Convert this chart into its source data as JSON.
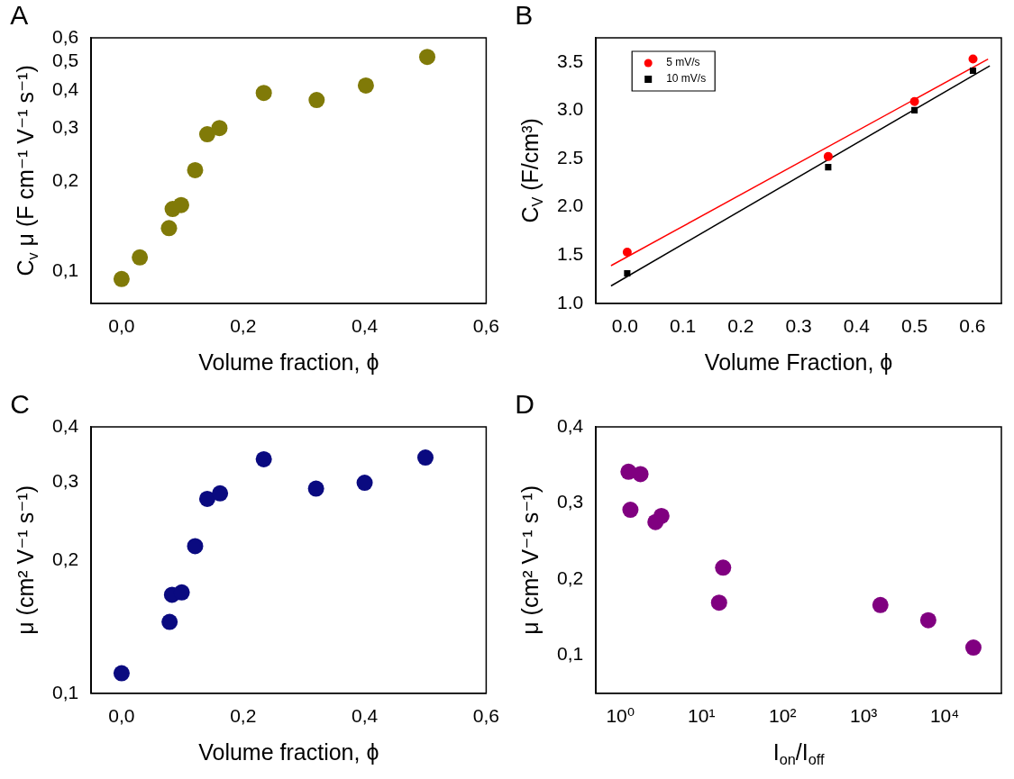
{
  "chart_data": [
    {
      "type": "scatter",
      "title": "A",
      "xlabel": "Volume fraction, ϕ",
      "ylabel": "C$_{v}$ μ (F cm⁻¹ V⁻¹ s⁻¹)",
      "log": "y",
      "grid": false,
      "marker": "circle",
      "legend": false,
      "xlim": [
        -0.05,
        0.6
      ],
      "xticks": [
        {
          "value": 0,
          "label": "0,0"
        },
        {
          "value": 0.2,
          "label": "0,2"
        },
        {
          "value": 0.4,
          "label": "0,4"
        },
        {
          "value": 0.6,
          "label": "0,6"
        }
      ],
      "ylim": [
        0.078,
        0.6
      ],
      "yticks": [
        {
          "value": 0.1,
          "label": "0,1"
        },
        {
          "value": 0.2,
          "label": "0,2"
        },
        {
          "value": 0.3,
          "label": "0,3"
        },
        {
          "value": 0.4,
          "label": "0,4"
        },
        {
          "value": 0.5,
          "label": "0,5"
        },
        {
          "value": 0.6,
          "label": "0,6"
        }
      ],
      "x": [
        0,
        0.03,
        0.078,
        0.084,
        0.098,
        0.121,
        0.141,
        0.161,
        0.234,
        0.321,
        0.402,
        0.503
      ],
      "series": [
        {
          "color": "#807a08",
          "values": [
            0.094,
            0.111,
            0.139,
            0.161,
            0.166,
            0.217,
            0.286,
            0.3,
            0.393,
            0.372,
            0.416,
            0.518
          ]
        }
      ]
    },
    {
      "type": "scatter",
      "title": "B",
      "xlabel": "Volume Fraction, ϕ",
      "ylabel": "C$_{V}$ (F/cm³)",
      "grid": false,
      "legend": "top left",
      "xlim": [
        -0.05,
        0.65
      ],
      "xticks": [
        {
          "value": 0,
          "label": "0.0"
        },
        0.1,
        0.2,
        0.3,
        0.4,
        0.5,
        0.6
      ],
      "ylim": [
        1.0,
        3.75
      ],
      "yticks": [
        {
          "value": 1,
          "label": "1.0"
        },
        1.5,
        {
          "value": 2,
          "label": "2.0"
        },
        2.5,
        {
          "value": 3,
          "label": "3.0"
        },
        3.5
      ],
      "series": [
        {
          "name": "5 mV/s",
          "color": "#ff0000",
          "marker": "circle",
          "x": [
            0.004,
            0.351,
            0.5,
            0.601
          ],
          "values": [
            1.53,
            2.52,
            3.09,
            3.53
          ]
        },
        {
          "name": "10 mV/s",
          "color": "#000000",
          "marker": "square",
          "x": [
            0.004,
            0.351,
            0.5,
            0.601
          ],
          "values": [
            1.31,
            2.41,
            3.0,
            3.41
          ]
        },
        {
          "type": "line",
          "color": "#ff0000",
          "marker": "none",
          "x": [
            -0.024,
            0.627
          ],
          "values": [
            1.39,
            3.53
          ]
        },
        {
          "type": "line",
          "color": "#000000",
          "marker": "none",
          "x": [
            -0.024,
            0.63
          ],
          "values": [
            1.18,
            3.46
          ]
        }
      ]
    },
    {
      "type": "scatter",
      "title": "C",
      "xlabel": "Volume fraction, ϕ",
      "ylabel": "μ (cm² V⁻¹ s⁻¹)",
      "log": "y",
      "grid": false,
      "marker": "circle",
      "legend": false,
      "xlim": [
        -0.05,
        0.6
      ],
      "xticks": [
        {
          "value": 0,
          "label": "0,0"
        },
        {
          "value": 0.2,
          "label": "0,2"
        },
        {
          "value": 0.4,
          "label": "0,4"
        },
        {
          "value": 0.6,
          "label": "0,6"
        }
      ],
      "ylim": [
        0.1,
        0.4
      ],
      "yticks": [
        {
          "value": 0.1,
          "label": "0,1"
        },
        {
          "value": 0.2,
          "label": "0,2"
        },
        {
          "value": 0.3,
          "label": "0,3"
        },
        {
          "value": 0.4,
          "label": "0,4"
        }
      ],
      "x": [
        0,
        0.079,
        0.083,
        0.099,
        0.121,
        0.141,
        0.162,
        0.234,
        0.32,
        0.4,
        0.5
      ],
      "series": [
        {
          "color": "#0a0a80",
          "values": [
            0.111,
            0.145,
            0.167,
            0.169,
            0.215,
            0.275,
            0.283,
            0.338,
            0.29,
            0.299,
            0.341
          ]
        }
      ]
    },
    {
      "type": "scatter",
      "title": "D",
      "xlabel": "I$_{on}$/I$_{off}$",
      "ylabel": "μ (cm² V⁻¹ s⁻¹)",
      "log": "x",
      "grid": false,
      "marker": "circle",
      "legend": false,
      "xlim": [
        0.5,
        50000
      ],
      "xticks": [
        {
          "value": 1,
          "label": "10⁰"
        },
        {
          "value": 10,
          "label": "10¹"
        },
        {
          "value": 100,
          "label": "10²"
        },
        {
          "value": 1000,
          "label": "10³"
        },
        {
          "value": 10000,
          "label": "10⁴"
        }
      ],
      "ylim": [
        0.05,
        0.4
      ],
      "yticks": [
        {
          "value": 0.1,
          "label": "0,1"
        },
        {
          "value": 0.2,
          "label": "0,2"
        },
        {
          "value": 0.3,
          "label": "0,3"
        },
        {
          "value": 0.4,
          "label": "0,4"
        }
      ],
      "x": [
        1.26,
        1.77,
        1.33,
        2.71,
        3.21,
        18.5,
        16.5,
        1610,
        6270,
        22600
      ],
      "series": [
        {
          "color": "#800080",
          "values": [
            0.341,
            0.338,
            0.291,
            0.275,
            0.283,
            0.215,
            0.169,
            0.166,
            0.146,
            0.11
          ]
        }
      ]
    }
  ]
}
